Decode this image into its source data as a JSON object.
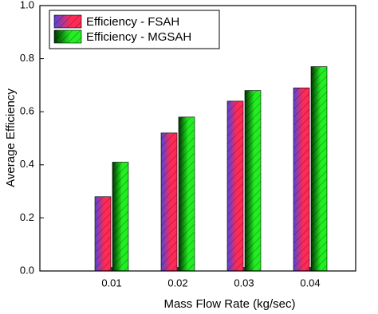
{
  "chart_data": {
    "type": "bar",
    "x_label": "Mass Flow Rate (kg/sec)",
    "y_label": "Average Efficiency",
    "categories": [
      "0.01",
      "0.02",
      "0.03",
      "0.04"
    ],
    "series": [
      {
        "name": "Efficiency - FSAH",
        "color": "#ff2a55",
        "values": [
          0.28,
          0.52,
          0.64,
          0.69
        ]
      },
      {
        "name": "Efficiency - MGSAH",
        "color": "#22ee22",
        "values": [
          0.41,
          0.58,
          0.68,
          0.77
        ]
      }
    ],
    "ylim": [
      0,
      1
    ],
    "yticks": [
      {
        "value": 0,
        "label": "0.0"
      },
      0.2,
      0.4,
      0.6,
      0.8,
      {
        "value": 1,
        "label": "1.0"
      }
    ],
    "grid": false,
    "legend": "upper left"
  }
}
